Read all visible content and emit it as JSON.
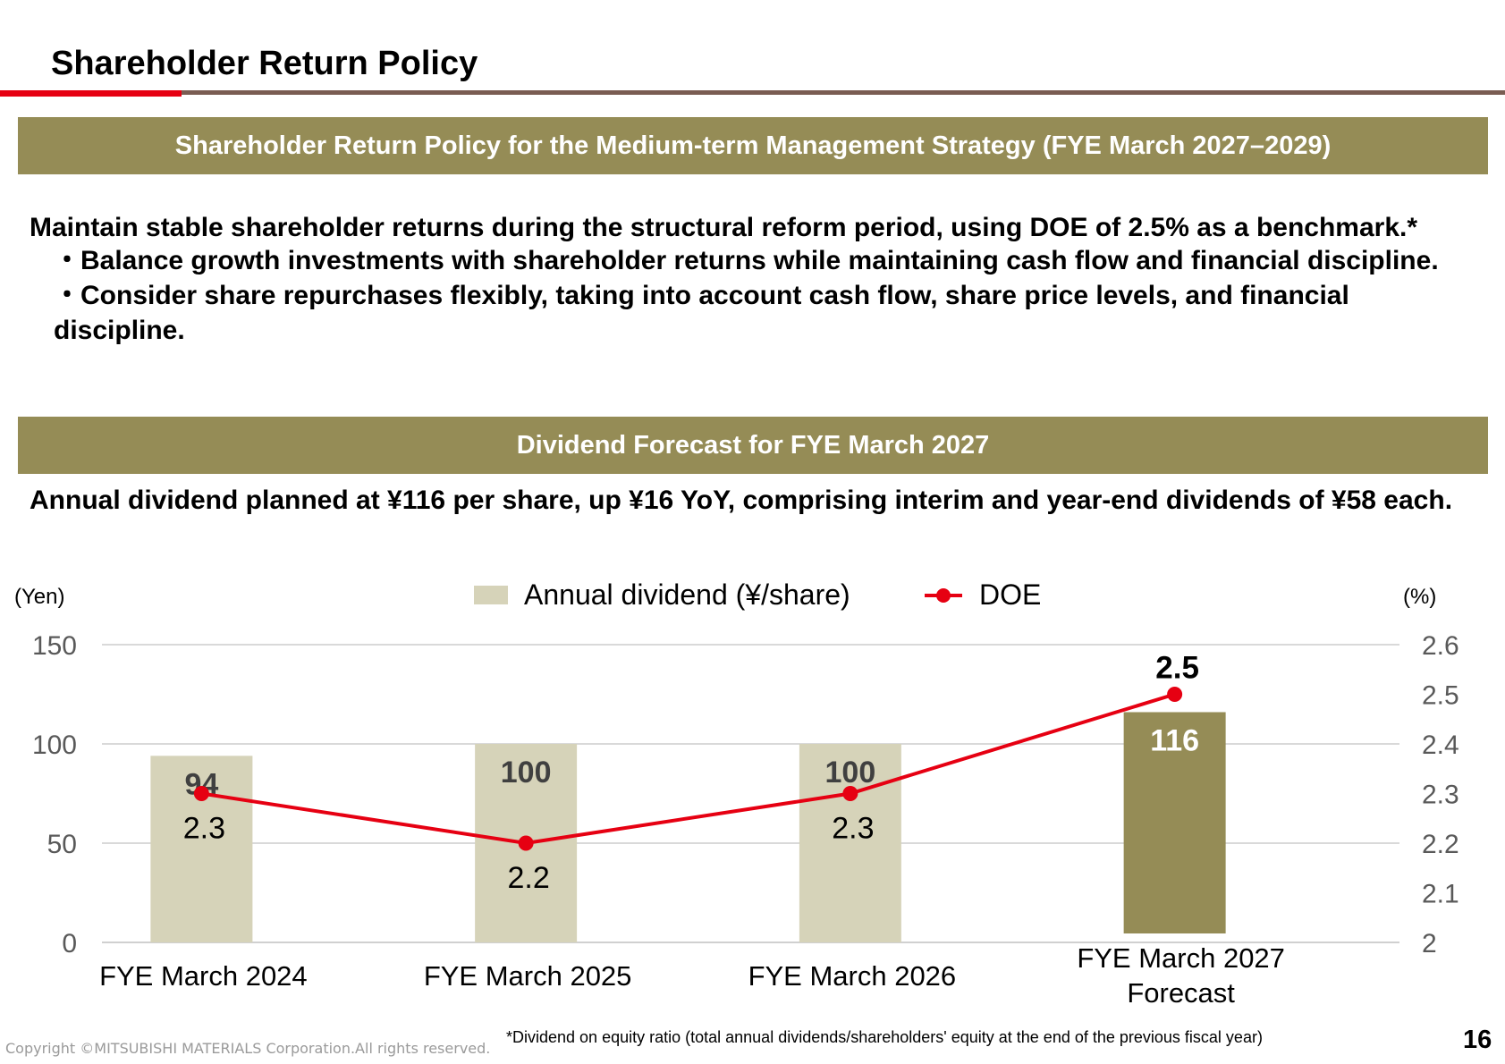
{
  "page": {
    "title": "Shareholder Return Policy",
    "number": "16",
    "copyright": "Copyright ©MITSUBISHI MATERIALS Corporation.All rights reserved."
  },
  "policy": {
    "band_title": "Shareholder Return Policy for the Medium-term Management Strategy (FYE March 2027–2029)",
    "lead": "Maintain stable shareholder returns during the structural reform period, using DOE of 2.5% as a benchmark.*",
    "bullets": [
      "・Balance growth investments with shareholder returns while maintaining cash flow and financial discipline.",
      "・Consider share repurchases flexibly, taking into account cash flow, share price levels, and financial discipline."
    ]
  },
  "dividend": {
    "band_title": "Dividend Forecast for FYE March 2027",
    "text": "Annual dividend planned at ¥116 per share, up ¥16 YoY, comprising interim and year-end dividends of ¥58 each."
  },
  "footnote": "*Dividend on equity ratio (total annual dividends/shareholders' equity at the end of the previous fiscal year)",
  "colors": {
    "band": "#958c56",
    "bar_actual": "#d6d3b9",
    "bar_forecast": "#958c56",
    "doe_line": "#e60012",
    "accent_red": "#e60012",
    "rule_brown": "#7a5c52"
  },
  "chart_data": {
    "type": "bar",
    "categories": [
      [
        "FYE March 2024"
      ],
      [
        "FYE March 2025"
      ],
      [
        "FYE March 2026"
      ],
      [
        "FYE March 2027",
        "Forecast"
      ]
    ],
    "series": [
      {
        "name": "Annual dividend (¥/share)",
        "type": "bar",
        "axis": "left",
        "values": [
          94,
          100,
          100,
          116
        ],
        "labels": [
          "94",
          "100",
          "100",
          "116"
        ]
      },
      {
        "name": "DOE",
        "type": "line",
        "axis": "right",
        "values": [
          2.3,
          2.2,
          2.3,
          2.5
        ],
        "labels": [
          "2.3",
          "2.2",
          "2.3",
          "2.5"
        ]
      }
    ],
    "y_left": {
      "unit": "(Yen)",
      "range": [
        0,
        150
      ],
      "ticks": [
        "0",
        "50",
        "100",
        "150"
      ]
    },
    "y_right": {
      "unit": "(%)",
      "range": [
        2,
        2.6
      ],
      "ticks": [
        "2",
        "2.1",
        "2.2",
        "2.3",
        "2.4",
        "2.5",
        "2.6"
      ]
    },
    "forecast_index": 3,
    "legend_position": "top-center",
    "grid": true
  }
}
